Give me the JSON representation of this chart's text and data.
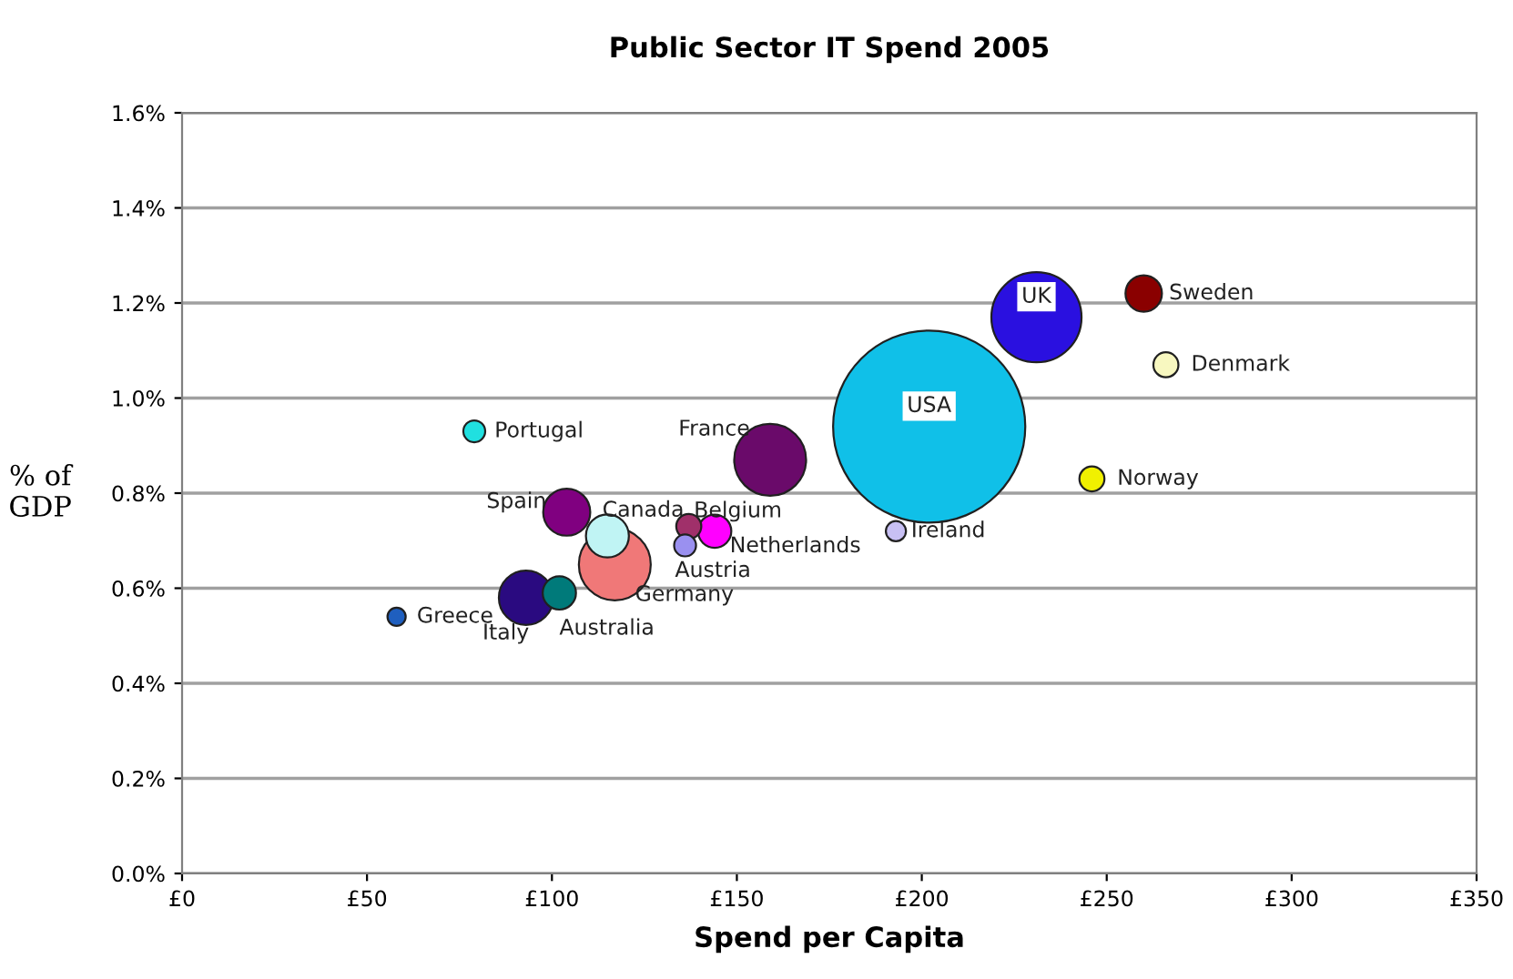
{
  "chart_data": {
    "type": "bubble",
    "title": "Public Sector IT Spend 2005",
    "xlabel": "Spend per Capita",
    "ylabel": "% of\nGDP",
    "xlim": [
      0,
      350
    ],
    "xticks": [
      {
        "value": 0,
        "label": "£0"
      },
      {
        "value": 50,
        "label": "£50"
      },
      {
        "value": 100,
        "label": "£100"
      },
      {
        "value": 150,
        "label": "£150"
      },
      {
        "value": 200,
        "label": "£200"
      },
      {
        "value": 250,
        "label": "£250"
      },
      {
        "value": 300,
        "label": "£300"
      },
      {
        "value": 350,
        "label": "£350"
      }
    ],
    "ylim": [
      0,
      1.6
    ],
    "yticks": [
      {
        "value": 0,
        "label": "0.0%"
      },
      {
        "value": 0.2,
        "label": "0.2%"
      },
      {
        "value": 0.4,
        "label": "0.4%"
      },
      {
        "value": 0.6,
        "label": "0.6%"
      },
      {
        "value": 0.8,
        "label": "0.8%"
      },
      {
        "value": 1.0,
        "label": "1.0%"
      },
      {
        "value": 1.2,
        "label": "1.2%"
      },
      {
        "value": 1.4,
        "label": "1.4%"
      },
      {
        "value": 1.6,
        "label": "1.6%"
      }
    ],
    "grid": "y",
    "series": [
      {
        "name": "Greece",
        "color": "#1f5fbf",
        "x": [
          58
        ],
        "values": [
          0.54
        ],
        "sizes": [
          0.009
        ]
      },
      {
        "name": "Portugal",
        "color": "#20e0e0",
        "x": [
          79
        ],
        "values": [
          0.93
        ],
        "sizes": [
          0.013
        ]
      },
      {
        "name": "Italy",
        "color": "#2a0a80",
        "x": [
          93
        ],
        "values": [
          0.58
        ],
        "sizes": [
          0.08
        ]
      },
      {
        "name": "Australia",
        "color": "#007a7a",
        "x": [
          102
        ],
        "values": [
          0.59
        ],
        "sizes": [
          0.03
        ]
      },
      {
        "name": "Spain",
        "color": "#800080",
        "x": [
          104
        ],
        "values": [
          0.76
        ],
        "sizes": [
          0.06
        ]
      },
      {
        "name": "Germany",
        "color": "#f07878",
        "x": [
          117
        ],
        "values": [
          0.65
        ],
        "sizes": [
          0.14
        ]
      },
      {
        "name": "Canada",
        "color": "#c0f4f4",
        "x": [
          115
        ],
        "values": [
          0.71
        ],
        "sizes": [
          0.05
        ]
      },
      {
        "name": "Austria",
        "color": "#9a90f0",
        "x": [
          136
        ],
        "values": [
          0.69
        ],
        "sizes": [
          0.013
        ]
      },
      {
        "name": "Belgium",
        "color": "#a0306a",
        "x": [
          137
        ],
        "values": [
          0.73
        ],
        "sizes": [
          0.017
        ]
      },
      {
        "name": "Netherlands",
        "color": "#ff00ff",
        "x": [
          144
        ],
        "values": [
          0.72
        ],
        "sizes": [
          0.03
        ]
      },
      {
        "name": "France",
        "color": "#6a0a6a",
        "x": [
          159
        ],
        "values": [
          0.87
        ],
        "sizes": [
          0.14
        ]
      },
      {
        "name": "USA",
        "color": "#10c0e8",
        "x": [
          202
        ],
        "values": [
          0.94
        ],
        "sizes": [
          1
        ]
      },
      {
        "name": "Ireland",
        "color": "#c8c0f4",
        "x": [
          193
        ],
        "values": [
          0.72
        ],
        "sizes": [
          0.011
        ]
      },
      {
        "name": "UK",
        "color": "#2a10e0",
        "x": [
          231
        ],
        "values": [
          1.17
        ],
        "sizes": [
          0.22
        ]
      },
      {
        "name": "Sweden",
        "color": "#8a0000",
        "x": [
          260
        ],
        "values": [
          1.22
        ],
        "sizes": [
          0.036
        ]
      },
      {
        "name": "Denmark",
        "color": "#f8f8c0",
        "x": [
          266
        ],
        "values": [
          1.07
        ],
        "sizes": [
          0.017
        ]
      },
      {
        "name": "Norway",
        "color": "#f0f000",
        "x": [
          246
        ],
        "values": [
          0.83
        ],
        "sizes": [
          0.017
        ]
      }
    ]
  }
}
